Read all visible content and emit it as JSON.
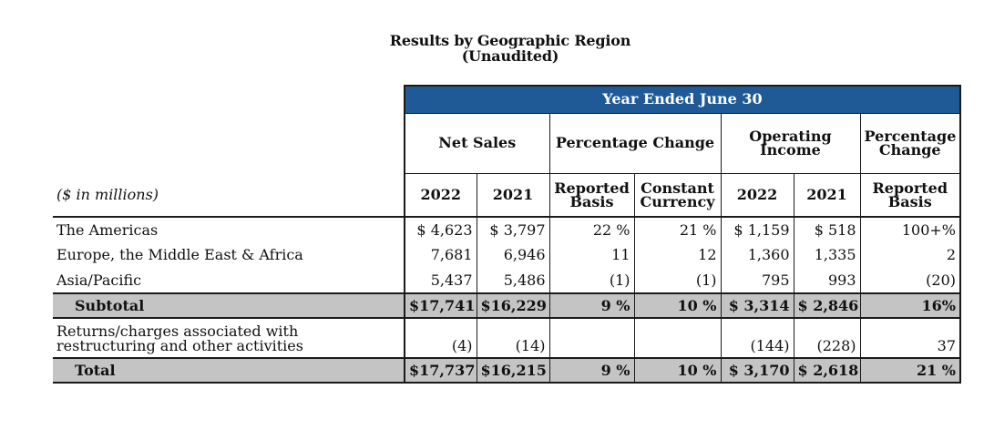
{
  "title": {
    "line1": "Results by Geographic Region",
    "line2": "(Unaudited)"
  },
  "header": {
    "period": "Year Ended June 30",
    "units": "($ in millions)",
    "groups": [
      "Net Sales",
      "Percentage Change",
      "Operating Income",
      "Percentage Change"
    ],
    "columns": [
      "2022",
      "2021",
      "Reported Basis",
      "Constant Currency",
      "2022",
      "2021",
      "Reported Basis"
    ]
  },
  "rows": [
    {
      "label": "The Americas",
      "cells": [
        "$ 4,623",
        "$ 3,797",
        "22 %",
        "21 %",
        "$ 1,159",
        "$ 518",
        "100+%"
      ]
    },
    {
      "label": "Europe, the Middle East & Africa",
      "cells": [
        "7,681",
        "6,946",
        "11",
        "12",
        "1,360",
        "1,335",
        "2"
      ]
    },
    {
      "label": "Asia/Pacific",
      "cells": [
        "5,437",
        "5,486",
        "(1)",
        "(1)",
        "795",
        "993",
        "(20)"
      ]
    },
    {
      "label": "Subtotal",
      "cells": [
        "$17,741",
        "$16,229",
        "9 %",
        "10 %",
        "$ 3,314",
        "$ 2,846",
        "16%"
      ]
    },
    {
      "label": "Returns/charges associated with restructuring and other activities",
      "cells": [
        "(4)",
        "(14)",
        "",
        "",
        "(144)",
        "(228)",
        "37"
      ]
    },
    {
      "label": "Total",
      "cells": [
        "$17,737",
        "$16,215",
        "9 %",
        "10 %",
        "$ 3,170",
        "$ 2,618",
        "21 %"
      ]
    }
  ]
}
